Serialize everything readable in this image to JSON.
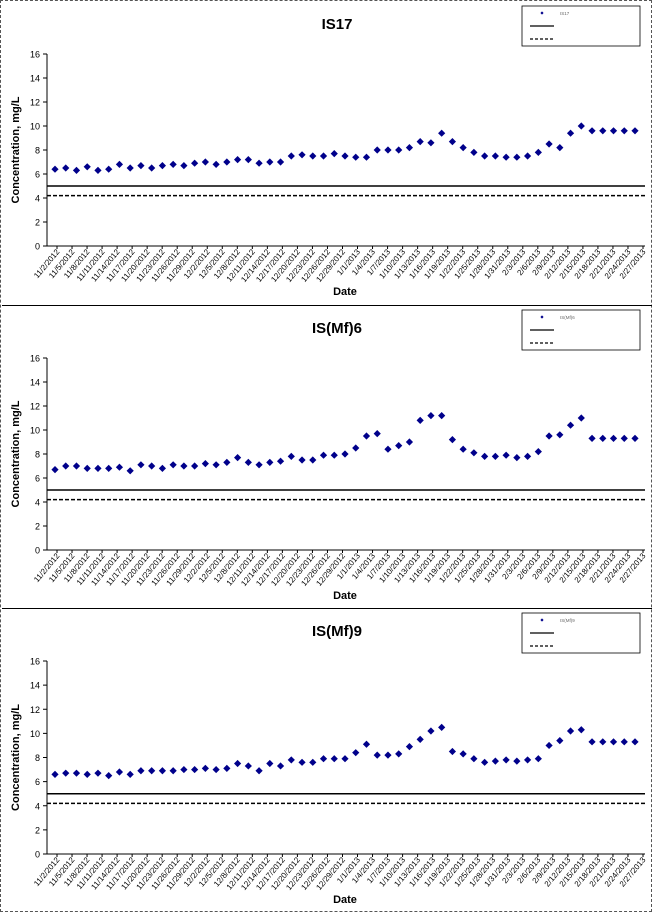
{
  "chart_data": [
    {
      "type": "scatter",
      "title": "IS17",
      "xlabel": "Date",
      "ylabel": "Concentration, mg/L",
      "ylim": [
        0,
        16
      ],
      "yticks": [
        0,
        2,
        4,
        6,
        8,
        10,
        12,
        14,
        16
      ],
      "x_tick_labels": [
        "11/2/2012",
        "11/5/2012",
        "11/8/2012",
        "11/11/2012",
        "11/14/2012",
        "11/17/2012",
        "11/20/2012",
        "11/23/2012",
        "11/26/2012",
        "11/29/2012",
        "12/2/2012",
        "12/5/2012",
        "12/8/2012",
        "12/11/2012",
        "12/14/2012",
        "12/17/2012",
        "12/20/2012",
        "12/23/2012",
        "12/26/2012",
        "12/29/2012",
        "1/1/2013",
        "1/4/2013",
        "1/7/2013",
        "1/10/2013",
        "1/13/2013",
        "1/16/2013",
        "1/19/2013",
        "1/22/2013",
        "1/25/2013",
        "1/28/2013",
        "1/31/2013",
        "2/3/2013",
        "2/6/2013",
        "2/9/2013",
        "2/12/2013",
        "2/15/2013",
        "2/18/2013",
        "2/21/2013",
        "2/24/2013",
        "2/27/2013"
      ],
      "legend_position": "top-right",
      "legend_labels": [
        "IS17",
        "",
        ""
      ],
      "grid": false,
      "series": [
        {
          "name": "IS17",
          "kind": "points",
          "color": "#00008B",
          "x": [
            0,
            1,
            2,
            3,
            4,
            5,
            6,
            7,
            8,
            9,
            10,
            11,
            12,
            13,
            14,
            15,
            16,
            17,
            18,
            19,
            20,
            21,
            22,
            23,
            24,
            25,
            26,
            27,
            28,
            29,
            30,
            31,
            32,
            33,
            34,
            35,
            36,
            37,
            38,
            39,
            40,
            41,
            42,
            43,
            44,
            45,
            46,
            47,
            48,
            49,
            50,
            51,
            52,
            53,
            54
          ],
          "y": [
            6.4,
            6.5,
            6.3,
            6.6,
            6.3,
            6.4,
            6.8,
            6.5,
            6.7,
            6.5,
            6.7,
            6.8,
            6.7,
            6.9,
            7.0,
            6.8,
            7.0,
            7.2,
            7.2,
            6.9,
            7.0,
            7.0,
            7.5,
            7.6,
            7.5,
            7.5,
            7.7,
            7.5,
            7.4,
            7.4,
            8.0,
            8.0,
            8.0,
            8.2,
            8.7,
            8.6,
            9.4,
            8.7,
            8.2,
            7.8,
            7.5,
            7.5,
            7.4,
            7.4,
            7.5,
            7.8,
            8.5,
            8.2,
            9.4,
            10.0,
            9.6,
            9.6,
            9.6,
            9.6,
            9.6
          ]
        },
        {
          "name": "",
          "kind": "hline",
          "y": 5.0,
          "dash": "none"
        },
        {
          "name": "",
          "kind": "hline",
          "y": 4.2,
          "dash": "dashed"
        }
      ]
    },
    {
      "type": "scatter",
      "title": "IS(Mf)6",
      "xlabel": "Date",
      "ylabel": "Concentration, mg/L",
      "ylim": [
        0,
        16
      ],
      "yticks": [
        0,
        2,
        4,
        6,
        8,
        10,
        12,
        14,
        16
      ],
      "x_tick_labels": [
        "11/2/2012",
        "11/5/2012",
        "11/8/2012",
        "11/11/2012",
        "11/14/2012",
        "11/17/2012",
        "11/20/2012",
        "11/23/2012",
        "11/26/2012",
        "11/29/2012",
        "12/2/2012",
        "12/5/2012",
        "12/8/2012",
        "12/11/2012",
        "12/14/2012",
        "12/17/2012",
        "12/20/2012",
        "12/23/2012",
        "12/26/2012",
        "12/29/2012",
        "1/1/2013",
        "1/4/2013",
        "1/7/2013",
        "1/10/2013",
        "1/13/2013",
        "1/16/2013",
        "1/19/2013",
        "1/22/2013",
        "1/25/2013",
        "1/28/2013",
        "1/31/2013",
        "2/3/2013",
        "2/6/2013",
        "2/9/2013",
        "2/12/2013",
        "2/15/2013",
        "2/18/2013",
        "2/21/2013",
        "2/24/2013",
        "2/27/2013"
      ],
      "legend_position": "top-right",
      "legend_labels": [
        "IS(Mf)6",
        "",
        ""
      ],
      "grid": false,
      "series": [
        {
          "name": "IS(Mf)6",
          "kind": "points",
          "color": "#00008B",
          "x": [
            0,
            1,
            2,
            3,
            4,
            5,
            6,
            7,
            8,
            9,
            10,
            11,
            12,
            13,
            14,
            15,
            16,
            17,
            18,
            19,
            20,
            21,
            22,
            23,
            24,
            25,
            26,
            27,
            28,
            29,
            30,
            31,
            32,
            33,
            34,
            35,
            36,
            37,
            38,
            39,
            40,
            41,
            42,
            43,
            44,
            45,
            46,
            47,
            48,
            49,
            50,
            51,
            52,
            53,
            54
          ],
          "y": [
            6.7,
            7.0,
            7.0,
            6.8,
            6.8,
            6.8,
            6.9,
            6.6,
            7.1,
            7.0,
            6.8,
            7.1,
            7.0,
            7.0,
            7.2,
            7.1,
            7.3,
            7.7,
            7.3,
            7.1,
            7.3,
            7.4,
            7.8,
            7.5,
            7.5,
            7.9,
            7.9,
            8.0,
            8.5,
            9.5,
            9.7,
            8.4,
            8.7,
            9.0,
            10.8,
            11.2,
            11.2,
            9.2,
            8.4,
            8.1,
            7.8,
            7.8,
            7.9,
            7.7,
            7.8,
            8.2,
            9.5,
            9.6,
            10.4,
            11.0,
            9.3,
            9.3,
            9.3,
            9.3,
            9.3
          ]
        },
        {
          "name": "",
          "kind": "hline",
          "y": 5.0,
          "dash": "none"
        },
        {
          "name": "",
          "kind": "hline",
          "y": 4.2,
          "dash": "dashed"
        }
      ]
    },
    {
      "type": "scatter",
      "title": "IS(Mf)9",
      "xlabel": "Date",
      "ylabel": "Concentration, mg/L",
      "ylim": [
        0,
        16
      ],
      "yticks": [
        0,
        2,
        4,
        6,
        8,
        10,
        12,
        14,
        16
      ],
      "x_tick_labels": [
        "11/2/2012",
        "11/5/2012",
        "11/8/2012",
        "11/11/2012",
        "11/14/2012",
        "11/17/2012",
        "11/20/2012",
        "11/23/2012",
        "11/26/2012",
        "11/29/2012",
        "12/2/2012",
        "12/5/2012",
        "12/8/2012",
        "12/11/2012",
        "12/14/2012",
        "12/17/2012",
        "12/20/2012",
        "12/23/2012",
        "12/26/2012",
        "12/29/2012",
        "1/1/2013",
        "1/4/2013",
        "1/7/2013",
        "1/10/2013",
        "1/13/2013",
        "1/16/2013",
        "1/19/2013",
        "1/22/2013",
        "1/25/2013",
        "1/28/2013",
        "1/31/2013",
        "2/3/2013",
        "2/6/2013",
        "2/9/2013",
        "2/12/2013",
        "2/15/2013",
        "2/18/2013",
        "2/21/2013",
        "2/24/2013",
        "2/27/2013"
      ],
      "legend_position": "top-right",
      "legend_labels": [
        "IS(Mf)9",
        "",
        ""
      ],
      "grid": false,
      "series": [
        {
          "name": "IS(Mf)9",
          "kind": "points",
          "color": "#00008B",
          "x": [
            0,
            1,
            2,
            3,
            4,
            5,
            6,
            7,
            8,
            9,
            10,
            11,
            12,
            13,
            14,
            15,
            16,
            17,
            18,
            19,
            20,
            21,
            22,
            23,
            24,
            25,
            26,
            27,
            28,
            29,
            30,
            31,
            32,
            33,
            34,
            35,
            36,
            37,
            38,
            39,
            40,
            41,
            42,
            43,
            44,
            45,
            46,
            47,
            48,
            49,
            50,
            51,
            52,
            53,
            54
          ],
          "y": [
            6.6,
            6.7,
            6.7,
            6.6,
            6.7,
            6.5,
            6.8,
            6.6,
            6.9,
            6.9,
            6.9,
            6.9,
            7.0,
            7.0,
            7.1,
            7.0,
            7.1,
            7.5,
            7.3,
            6.9,
            7.5,
            7.3,
            7.8,
            7.6,
            7.6,
            7.9,
            7.9,
            7.9,
            8.4,
            9.1,
            8.2,
            8.2,
            8.3,
            8.9,
            9.5,
            10.2,
            10.5,
            8.5,
            8.3,
            7.9,
            7.6,
            7.7,
            7.8,
            7.7,
            7.8,
            7.9,
            9.0,
            9.4,
            10.2,
            10.3,
            9.3,
            9.3,
            9.3,
            9.3,
            9.3
          ]
        },
        {
          "name": "",
          "kind": "hline",
          "y": 5.0,
          "dash": "none"
        },
        {
          "name": "",
          "kind": "hline",
          "y": 4.2,
          "dash": "dashed"
        }
      ]
    }
  ]
}
